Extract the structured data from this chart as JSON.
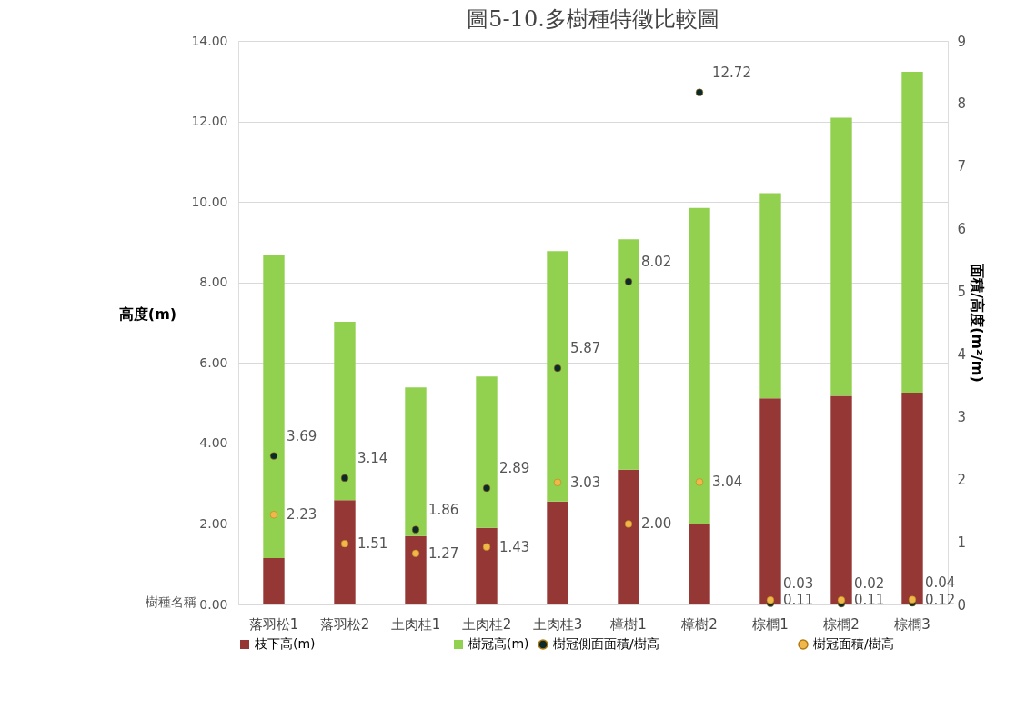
{
  "chart_data": {
    "type": "bar",
    "title": "圖5-10.多樹種特徵比較圖",
    "xlabel": "樹種名稱",
    "ylabel": "高度(m)",
    "y2label": "面積/高度(m²/m)",
    "categories": [
      "落羽松1",
      "落羽松2",
      "土肉桂1",
      "土肉桂2",
      "土肉桂3",
      "樟樹1",
      "樟樹2",
      "棕櫚1",
      "棕櫚2",
      "棕櫚3"
    ],
    "stacked": true,
    "series": [
      {
        "name": "枝下高(m)",
        "color": "#953735",
        "values": [
          1.15,
          2.59,
          1.7,
          1.9,
          2.56,
          3.35,
          2.0,
          5.12,
          5.18,
          5.26
        ]
      },
      {
        "name": "樹冠高(m)",
        "color": "#92d050",
        "values": [
          7.53,
          4.43,
          3.69,
          3.76,
          6.22,
          5.72,
          7.85,
          5.1,
          6.91,
          7.97
        ]
      },
      {
        "name": "樹冠側面面積/樹高",
        "type": "scatter",
        "color": "#0d2a2a",
        "value_labels": [
          "3.69",
          "3.14",
          "1.86",
          "2.89",
          "5.87",
          "8.02",
          "12.72",
          "0.03",
          "0.02",
          "0.04"
        ],
        "values": [
          3.69,
          3.14,
          1.86,
          2.89,
          5.87,
          8.02,
          12.72,
          0.03,
          0.02,
          0.04
        ]
      },
      {
        "name": "樹冠面積/樹高",
        "type": "scatter",
        "color": "#f0b84a",
        "value_labels": [
          "2.23",
          "1.51",
          "1.27",
          "1.43",
          "3.03",
          "2.00",
          "3.04",
          "0.11",
          "0.11",
          "0.12"
        ],
        "values": [
          2.23,
          1.51,
          1.27,
          1.43,
          3.03,
          2.0,
          3.04,
          0.11,
          0.11,
          0.12
        ]
      }
    ],
    "ylim": [
      0,
      14
    ],
    "yticks": [
      {
        "value": 0,
        "label": "0.00"
      },
      {
        "value": 2,
        "label": "2.00"
      },
      {
        "value": 4,
        "label": "4.00"
      },
      {
        "value": 6,
        "label": "6.00"
      },
      {
        "value": 8,
        "label": "8.00"
      },
      {
        "value": 10,
        "label": "10.00"
      },
      {
        "value": 12,
        "label": "12.00"
      },
      {
        "value": 14,
        "label": "14.00"
      }
    ],
    "y2lim": [
      0,
      9
    ],
    "y2ticks": [
      0,
      1,
      2,
      3,
      4,
      5,
      6,
      7,
      8,
      9
    ],
    "grid": "y",
    "legend": "bottom",
    "marker": "circle"
  }
}
